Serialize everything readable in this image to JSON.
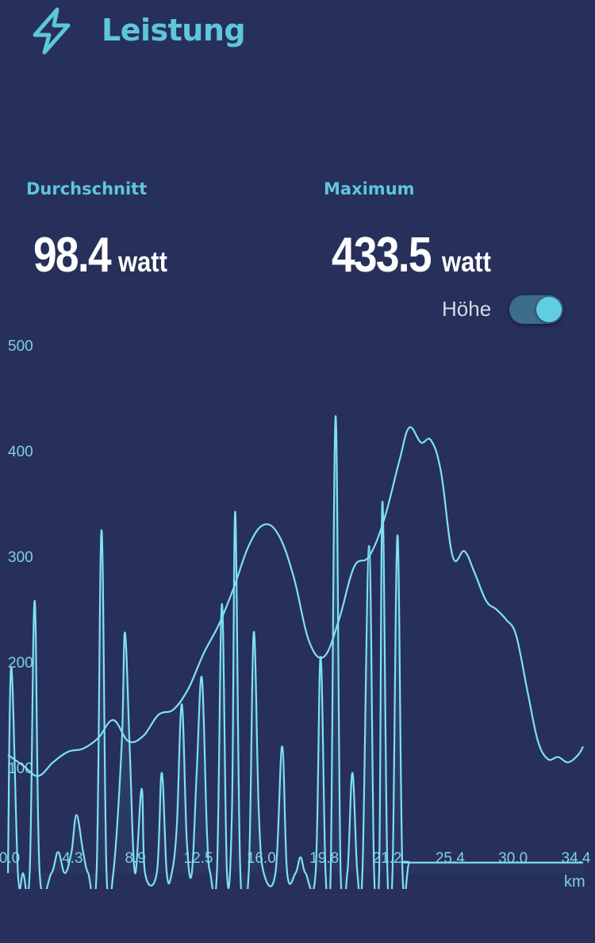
{
  "header": {
    "title": "Leistung",
    "icon": "lightning-bolt-icon",
    "accent_color": "#5ec6dc"
  },
  "stats": {
    "average": {
      "label": "Durchschnitt",
      "value": "98.4",
      "unit": "watt"
    },
    "maximum": {
      "label": "Maximum",
      "value": "433.5",
      "unit": "watt"
    }
  },
  "elevation_toggle": {
    "label": "Höhe",
    "on": true
  },
  "chart_data": {
    "type": "line",
    "xlabel": "km",
    "ylabel": "",
    "x_ticks": [
      "0.0",
      "4.3",
      "8.9",
      "12.5",
      "16.0",
      "19.8",
      "21.2",
      "25.4",
      "30.0",
      "34.4"
    ],
    "y_ticks": [
      "100",
      "200",
      "300",
      "400",
      "500"
    ],
    "ylim": [
      0,
      500
    ],
    "xlim": [
      0,
      34.4
    ],
    "line_color": "#7ee0f5",
    "series": [
      {
        "values": [
          [
            0.0,
            0
          ],
          [
            0.2,
            195
          ],
          [
            0.6,
            0
          ],
          [
            0.9,
            0
          ],
          [
            1.3,
            0
          ],
          [
            1.6,
            258
          ],
          [
            1.9,
            0
          ],
          [
            2.6,
            0
          ],
          [
            3.0,
            20
          ],
          [
            3.4,
            0
          ],
          [
            3.8,
            20
          ],
          [
            4.1,
            55
          ],
          [
            4.5,
            20
          ],
          [
            4.8,
            0
          ],
          [
            5.3,
            0
          ],
          [
            5.6,
            325
          ],
          [
            5.9,
            0
          ],
          [
            6.3,
            0
          ],
          [
            6.8,
            120
          ],
          [
            7.0,
            228
          ],
          [
            7.3,
            110
          ],
          [
            7.6,
            0
          ],
          [
            8.0,
            80
          ],
          [
            8.2,
            0
          ],
          [
            8.9,
            0
          ],
          [
            9.2,
            95
          ],
          [
            9.5,
            0
          ],
          [
            9.8,
            0
          ],
          [
            10.1,
            45
          ],
          [
            10.4,
            160
          ],
          [
            10.7,
            30
          ],
          [
            11.0,
            0
          ],
          [
            11.3,
            100
          ],
          [
            11.6,
            185
          ],
          [
            11.9,
            40
          ],
          [
            12.1,
            0
          ],
          [
            12.5,
            0
          ],
          [
            12.8,
            255
          ],
          [
            13.1,
            0
          ],
          [
            13.4,
            60
          ],
          [
            13.6,
            342
          ],
          [
            13.9,
            0
          ],
          [
            14.4,
            0
          ],
          [
            14.7,
            228
          ],
          [
            15.0,
            60
          ],
          [
            15.3,
            0
          ],
          [
            16.0,
            0
          ],
          [
            16.4,
            120
          ],
          [
            16.7,
            0
          ],
          [
            17.2,
            0
          ],
          [
            17.5,
            15
          ],
          [
            17.8,
            0
          ],
          [
            18.4,
            0
          ],
          [
            18.7,
            205
          ],
          [
            19.0,
            0
          ],
          [
            19.3,
            0
          ],
          [
            19.6,
            433
          ],
          [
            19.9,
            0
          ],
          [
            20.3,
            0
          ],
          [
            20.6,
            95
          ],
          [
            20.9,
            0
          ],
          [
            21.2,
            0
          ],
          [
            21.6,
            310
          ],
          [
            21.9,
            0
          ],
          [
            22.2,
            0
          ],
          [
            22.4,
            352
          ],
          [
            22.7,
            0
          ],
          [
            23.0,
            0
          ],
          [
            23.3,
            320
          ],
          [
            23.6,
            0
          ],
          [
            24.0,
            10
          ],
          [
            24.5,
            10
          ],
          [
            34.4,
            10
          ]
        ]
      },
      {
        "name": "Höhe",
        "values": [
          [
            0.0,
            112
          ],
          [
            0.9,
            102
          ],
          [
            1.8,
            92
          ],
          [
            2.7,
            105
          ],
          [
            3.6,
            115
          ],
          [
            4.5,
            118
          ],
          [
            5.4,
            128
          ],
          [
            6.3,
            145
          ],
          [
            7.2,
            125
          ],
          [
            8.1,
            130
          ],
          [
            9.0,
            150
          ],
          [
            9.9,
            155
          ],
          [
            10.8,
            175
          ],
          [
            11.7,
            208
          ],
          [
            12.6,
            235
          ],
          [
            13.5,
            270
          ],
          [
            14.4,
            310
          ],
          [
            15.3,
            330
          ],
          [
            16.2,
            320
          ],
          [
            17.1,
            280
          ],
          [
            18.0,
            220
          ],
          [
            18.9,
            205
          ],
          [
            19.8,
            240
          ],
          [
            20.7,
            290
          ],
          [
            21.6,
            300
          ],
          [
            22.5,
            335
          ],
          [
            23.4,
            390
          ],
          [
            24.0,
            422
          ],
          [
            24.7,
            408
          ],
          [
            25.3,
            410
          ],
          [
            25.9,
            380
          ],
          [
            26.6,
            300
          ],
          [
            27.3,
            305
          ],
          [
            27.9,
            285
          ],
          [
            28.6,
            258
          ],
          [
            29.2,
            250
          ],
          [
            29.8,
            240
          ],
          [
            30.4,
            225
          ],
          [
            31.1,
            170
          ],
          [
            31.7,
            125
          ],
          [
            32.3,
            108
          ],
          [
            32.9,
            110
          ],
          [
            33.5,
            105
          ],
          [
            34.1,
            112
          ],
          [
            34.4,
            120
          ]
        ]
      }
    ]
  }
}
